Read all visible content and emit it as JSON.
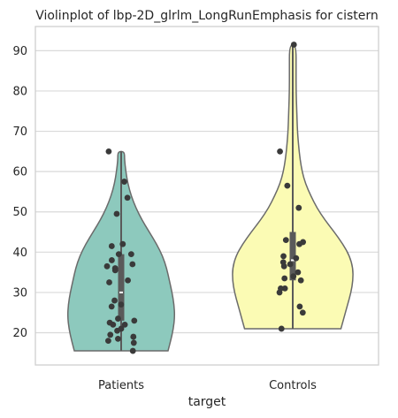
{
  "chart_data": {
    "type": "violin",
    "title": "Violinplot of lbp-2D_glrlm_LongRunEmphasis for cistern",
    "xlabel": "target",
    "ylabel": "",
    "categories": [
      "Patients",
      "Controls"
    ],
    "ylim": [
      12,
      96
    ],
    "yticks": [
      20,
      30,
      40,
      50,
      60,
      70,
      80,
      90
    ],
    "grid": true,
    "colors": {
      "Patients": "#8dc9bd",
      "Controls": "#fbfbb4",
      "outline": "#6b6b6b",
      "points": "#3a3a3a",
      "box": "#5a5a5a",
      "grid": "#d9d9d9"
    },
    "violins": [
      {
        "name": "Patients",
        "min": 15.5,
        "max": 65,
        "q1": 23,
        "median": 30,
        "q3": 39.5,
        "profile": [
          [
            15.5,
            0.7
          ],
          [
            18,
            0.74
          ],
          [
            21,
            0.78
          ],
          [
            24,
            0.8
          ],
          [
            27,
            0.79
          ],
          [
            30,
            0.76
          ],
          [
            33,
            0.72
          ],
          [
            36,
            0.68
          ],
          [
            39,
            0.62
          ],
          [
            42,
            0.53
          ],
          [
            45,
            0.42
          ],
          [
            48,
            0.31
          ],
          [
            51,
            0.22
          ],
          [
            54,
            0.15
          ],
          [
            57,
            0.1
          ],
          [
            60,
            0.07
          ],
          [
            63,
            0.05
          ],
          [
            65,
            0.05
          ]
        ],
        "points": [
          15.5,
          17.5,
          18,
          18.5,
          19,
          19.5,
          20.5,
          21,
          22,
          22,
          22.5,
          23,
          23.5,
          26.5,
          27,
          28,
          32.5,
          33,
          35.5,
          36,
          36.5,
          37,
          38,
          39.5,
          39.5,
          41.5,
          42,
          49.5,
          53.5,
          57.5,
          65
        ]
      },
      {
        "name": "Controls",
        "min": 21,
        "max": 91.5,
        "q1": 33,
        "median": 38,
        "q3": 45,
        "profile": [
          [
            21,
            0.72
          ],
          [
            24,
            0.77
          ],
          [
            27,
            0.82
          ],
          [
            30,
            0.87
          ],
          [
            33,
            0.9
          ],
          [
            36,
            0.9
          ],
          [
            39,
            0.85
          ],
          [
            42,
            0.75
          ],
          [
            45,
            0.62
          ],
          [
            48,
            0.48
          ],
          [
            51,
            0.36
          ],
          [
            54,
            0.27
          ],
          [
            57,
            0.19
          ],
          [
            60,
            0.14
          ],
          [
            63,
            0.11
          ],
          [
            66,
            0.09
          ],
          [
            70,
            0.07
          ],
          [
            75,
            0.06
          ],
          [
            80,
            0.05
          ],
          [
            85,
            0.05
          ],
          [
            91.5,
            0.05
          ]
        ],
        "points": [
          21,
          25,
          26.5,
          30,
          31,
          31,
          33,
          33.5,
          34,
          35,
          36.5,
          37,
          37.5,
          38.5,
          39,
          42,
          42.5,
          43,
          51,
          56.5,
          65,
          91.5
        ]
      }
    ]
  }
}
